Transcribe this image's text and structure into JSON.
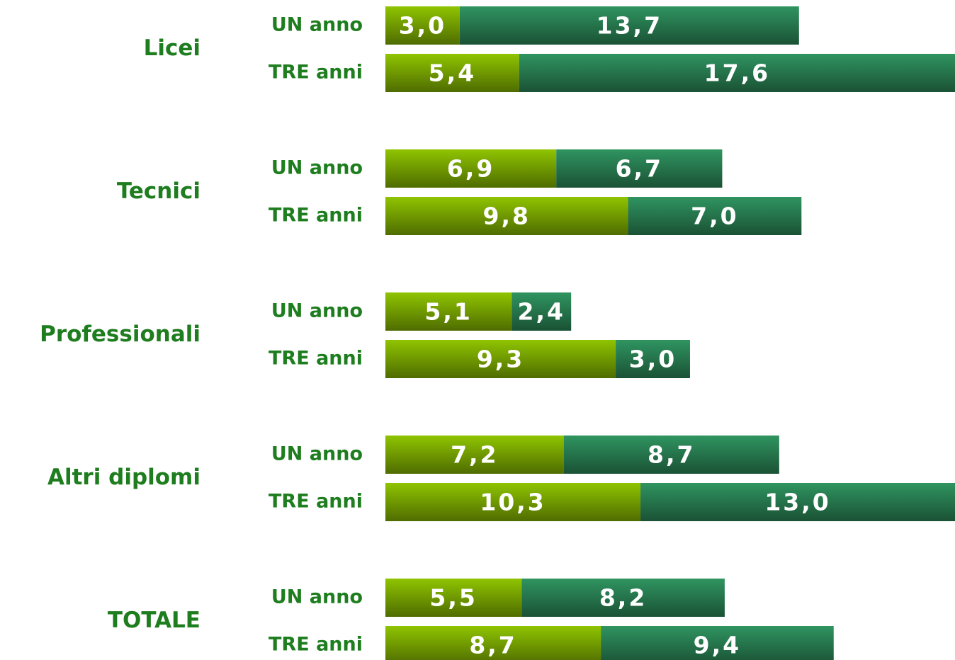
{
  "chart_data": {
    "type": "bar",
    "orientation": "horizontal",
    "stacked": true,
    "groups": [
      "Licei",
      "Tecnici",
      "Professionali",
      "Altri diplomi",
      "TOTALE"
    ],
    "categories": [
      "UN anno",
      "TRE anni",
      "UN anno",
      "TRE anni",
      "UN anno",
      "TRE anni",
      "UN anno",
      "TRE anni",
      "UN anno",
      "TRE anni"
    ],
    "series": [
      {
        "color": "#8fc400",
        "values": [
          3.0,
          5.4,
          6.9,
          9.8,
          5.1,
          9.3,
          7.2,
          10.3,
          5.5,
          8.7
        ],
        "value_labels": [
          "3,0",
          "5,4",
          "6,9",
          "9,8",
          "5,1",
          "9,3",
          "7,2",
          "10,3",
          "5,5",
          "8,7"
        ]
      },
      {
        "color": "#2f9460",
        "values": [
          13.7,
          17.6,
          6.7,
          7.0,
          2.4,
          3.0,
          8.7,
          13.0,
          8.2,
          9.4
        ],
        "value_labels": [
          "13,7",
          "17,6",
          "6,7",
          "7,0",
          "2,4",
          "3,0",
          "8,7",
          "13,0",
          "8,2",
          "9,4"
        ]
      }
    ],
    "xlim": [
      0,
      23
    ]
  }
}
